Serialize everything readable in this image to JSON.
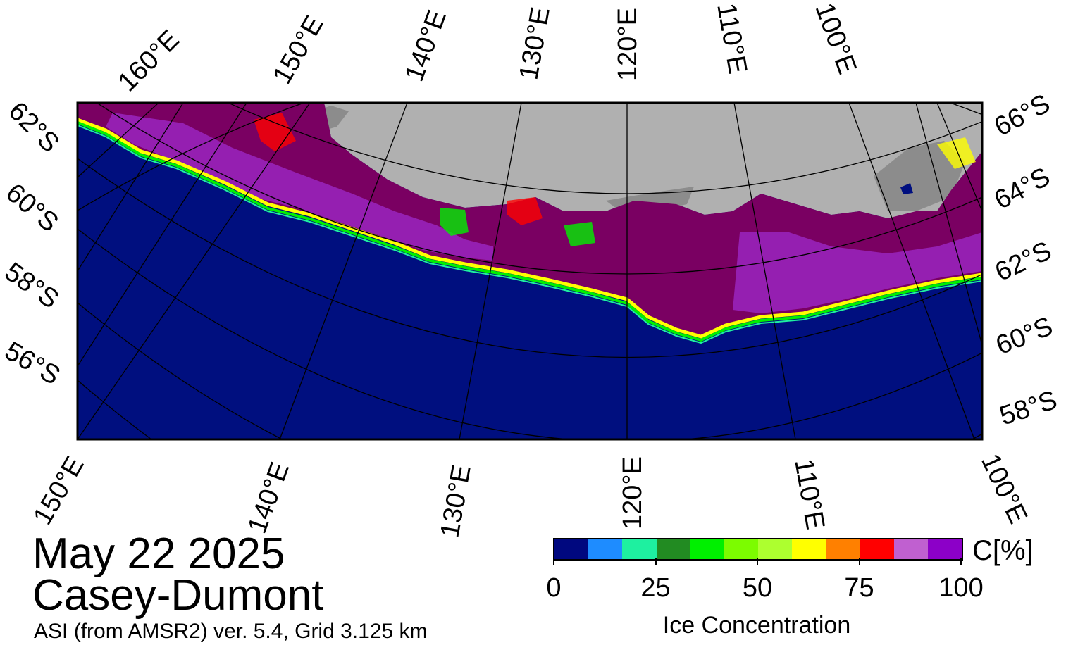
{
  "title": {
    "date": "May 22 2025",
    "region": "Casey-Dumont",
    "subtitle": "ASI (from AMSR2) ver. 5.4,  Grid 3.125 km"
  },
  "map": {
    "top_lon_labels": [
      "160°E",
      "150°E",
      "140°E",
      "130°E",
      "120°E",
      "110°E",
      "100°E"
    ],
    "bottom_lon_labels": [
      "150°E",
      "140°E",
      "130°E",
      "120°E",
      "110°E",
      "100°E"
    ],
    "left_lat_labels": [
      "62°S",
      "60°S",
      "58°S",
      "56°S"
    ],
    "right_lat_labels": [
      "66°S",
      "64°S",
      "62°S",
      "60°S",
      "58°S"
    ],
    "colors": {
      "ocean": "#000f7f",
      "land": "#b0b0b0",
      "ice_shelf": "#8c8c8c",
      "ice_high": "#7a0062",
      "ice_mid": "#9a24c0"
    }
  },
  "colorbar": {
    "title": "Ice Concentration",
    "unit": "C[%]",
    "ticks": [
      "0",
      "25",
      "50",
      "75",
      "100"
    ],
    "tick_values": [
      0,
      25,
      50,
      75,
      100
    ],
    "colors": [
      "#00087f",
      "#1e8cff",
      "#1ef0a0",
      "#228b22",
      "#00f000",
      "#7cfc00",
      "#adff2f",
      "#ffff00",
      "#ff8000",
      "#ff0000",
      "#c060d0",
      "#8c00c8"
    ]
  }
}
